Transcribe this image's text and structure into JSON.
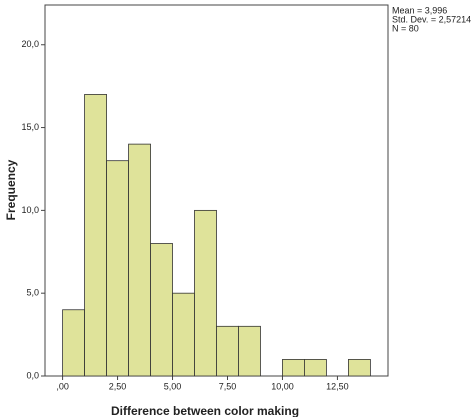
{
  "chart_data": {
    "type": "histogram",
    "x_label": "Difference between color making",
    "y_label": "Frequency",
    "bins": [
      0,
      1,
      2,
      3,
      4,
      5,
      6,
      7,
      8,
      9,
      10,
      11,
      12,
      13,
      14
    ],
    "values": [
      4,
      17,
      13,
      14,
      8,
      5,
      10,
      3,
      3,
      0,
      1,
      1,
      0,
      1
    ],
    "color": "#dfe39a",
    "edge_color": "#333333",
    "xlim": [
      -0.8,
      14.8
    ],
    "ylim": [
      0,
      22.4
    ],
    "xticks": [
      {
        "value": 0,
        "label": ",00"
      },
      {
        "value": 2.5,
        "label": "2,50"
      },
      {
        "value": 5,
        "label": "5,00"
      },
      {
        "value": 7.5,
        "label": "7,50"
      },
      {
        "value": 10,
        "label": "10,00"
      },
      {
        "value": 12.5,
        "label": "12,50"
      }
    ],
    "yticks": [
      {
        "value": 0,
        "label": "0,0"
      },
      {
        "value": 5,
        "label": "5,0"
      },
      {
        "value": 10,
        "label": "10,0"
      },
      {
        "value": 15,
        "label": "15,0"
      },
      {
        "value": 20,
        "label": "20,0"
      }
    ],
    "annotations": [
      "Mean = 3,996",
      "Std. Dev. = 2,57214",
      "N = 80"
    ]
  }
}
